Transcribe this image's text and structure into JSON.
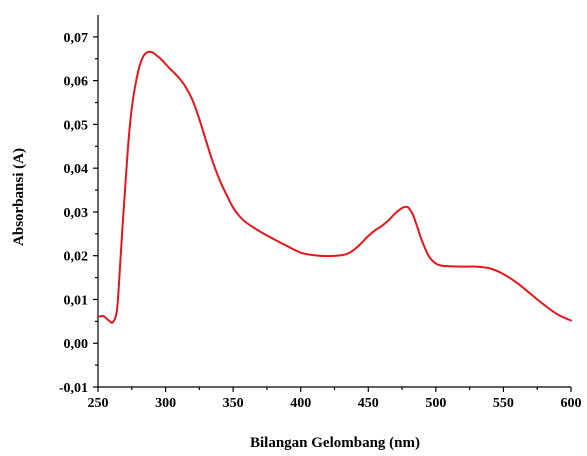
{
  "chart_data": {
    "type": "line",
    "title": "",
    "xlabel": "Bilangan Gelombang (nm)",
    "ylabel": "Absorbansi (A)",
    "xlim": [
      250,
      600
    ],
    "ylim": [
      -0.01,
      0.075
    ],
    "x_ticks": [
      250,
      300,
      350,
      400,
      450,
      500,
      550,
      600
    ],
    "y_ticks": [
      -0.01,
      0.0,
      0.01,
      0.02,
      0.03,
      0.04,
      0.05,
      0.06,
      0.07
    ],
    "x_tick_labels": [
      "250",
      "300",
      "350",
      "400",
      "450",
      "500",
      "550",
      "600"
    ],
    "y_tick_labels": [
      "-0,01",
      "0,00",
      "0,01",
      "0,02",
      "0,03",
      "0,04",
      "0,05",
      "0,06",
      "0,07"
    ],
    "grid": false,
    "legend": "none",
    "series": [
      {
        "color": "#e8151b",
        "x": [
          250,
          254,
          258,
          261,
          264,
          266,
          268,
          270,
          272,
          274,
          276,
          278,
          280,
          282,
          284,
          286,
          288,
          290,
          292,
          294,
          296,
          298,
          300,
          303,
          306,
          310,
          315,
          320,
          325,
          330,
          335,
          340,
          345,
          350,
          355,
          360,
          370,
          380,
          390,
          400,
          410,
          420,
          430,
          435,
          440,
          445,
          450,
          455,
          460,
          465,
          470,
          475,
          478,
          480,
          483,
          486,
          490,
          495,
          500,
          505,
          510,
          520,
          530,
          540,
          550,
          560,
          570,
          580,
          590,
          600
        ],
        "y": [
          0.006,
          0.0062,
          0.0052,
          0.0048,
          0.0075,
          0.016,
          0.026,
          0.035,
          0.044,
          0.051,
          0.056,
          0.0595,
          0.0625,
          0.0645,
          0.0658,
          0.0664,
          0.0666,
          0.0665,
          0.0661,
          0.0656,
          0.0651,
          0.0645,
          0.0638,
          0.0628,
          0.0619,
          0.0606,
          0.0585,
          0.0555,
          0.0512,
          0.0462,
          0.0414,
          0.0373,
          0.034,
          0.031,
          0.0289,
          0.0275,
          0.0255,
          0.0238,
          0.0222,
          0.0207,
          0.0201,
          0.0199,
          0.0201,
          0.0205,
          0.0215,
          0.0229,
          0.0245,
          0.0258,
          0.0268,
          0.0281,
          0.0297,
          0.0309,
          0.0312,
          0.0309,
          0.0294,
          0.0268,
          0.0232,
          0.0198,
          0.0182,
          0.0177,
          0.0176,
          0.0175,
          0.0175,
          0.0171,
          0.0158,
          0.0138,
          0.0113,
          0.0088,
          0.0066,
          0.0052
        ]
      }
    ]
  }
}
